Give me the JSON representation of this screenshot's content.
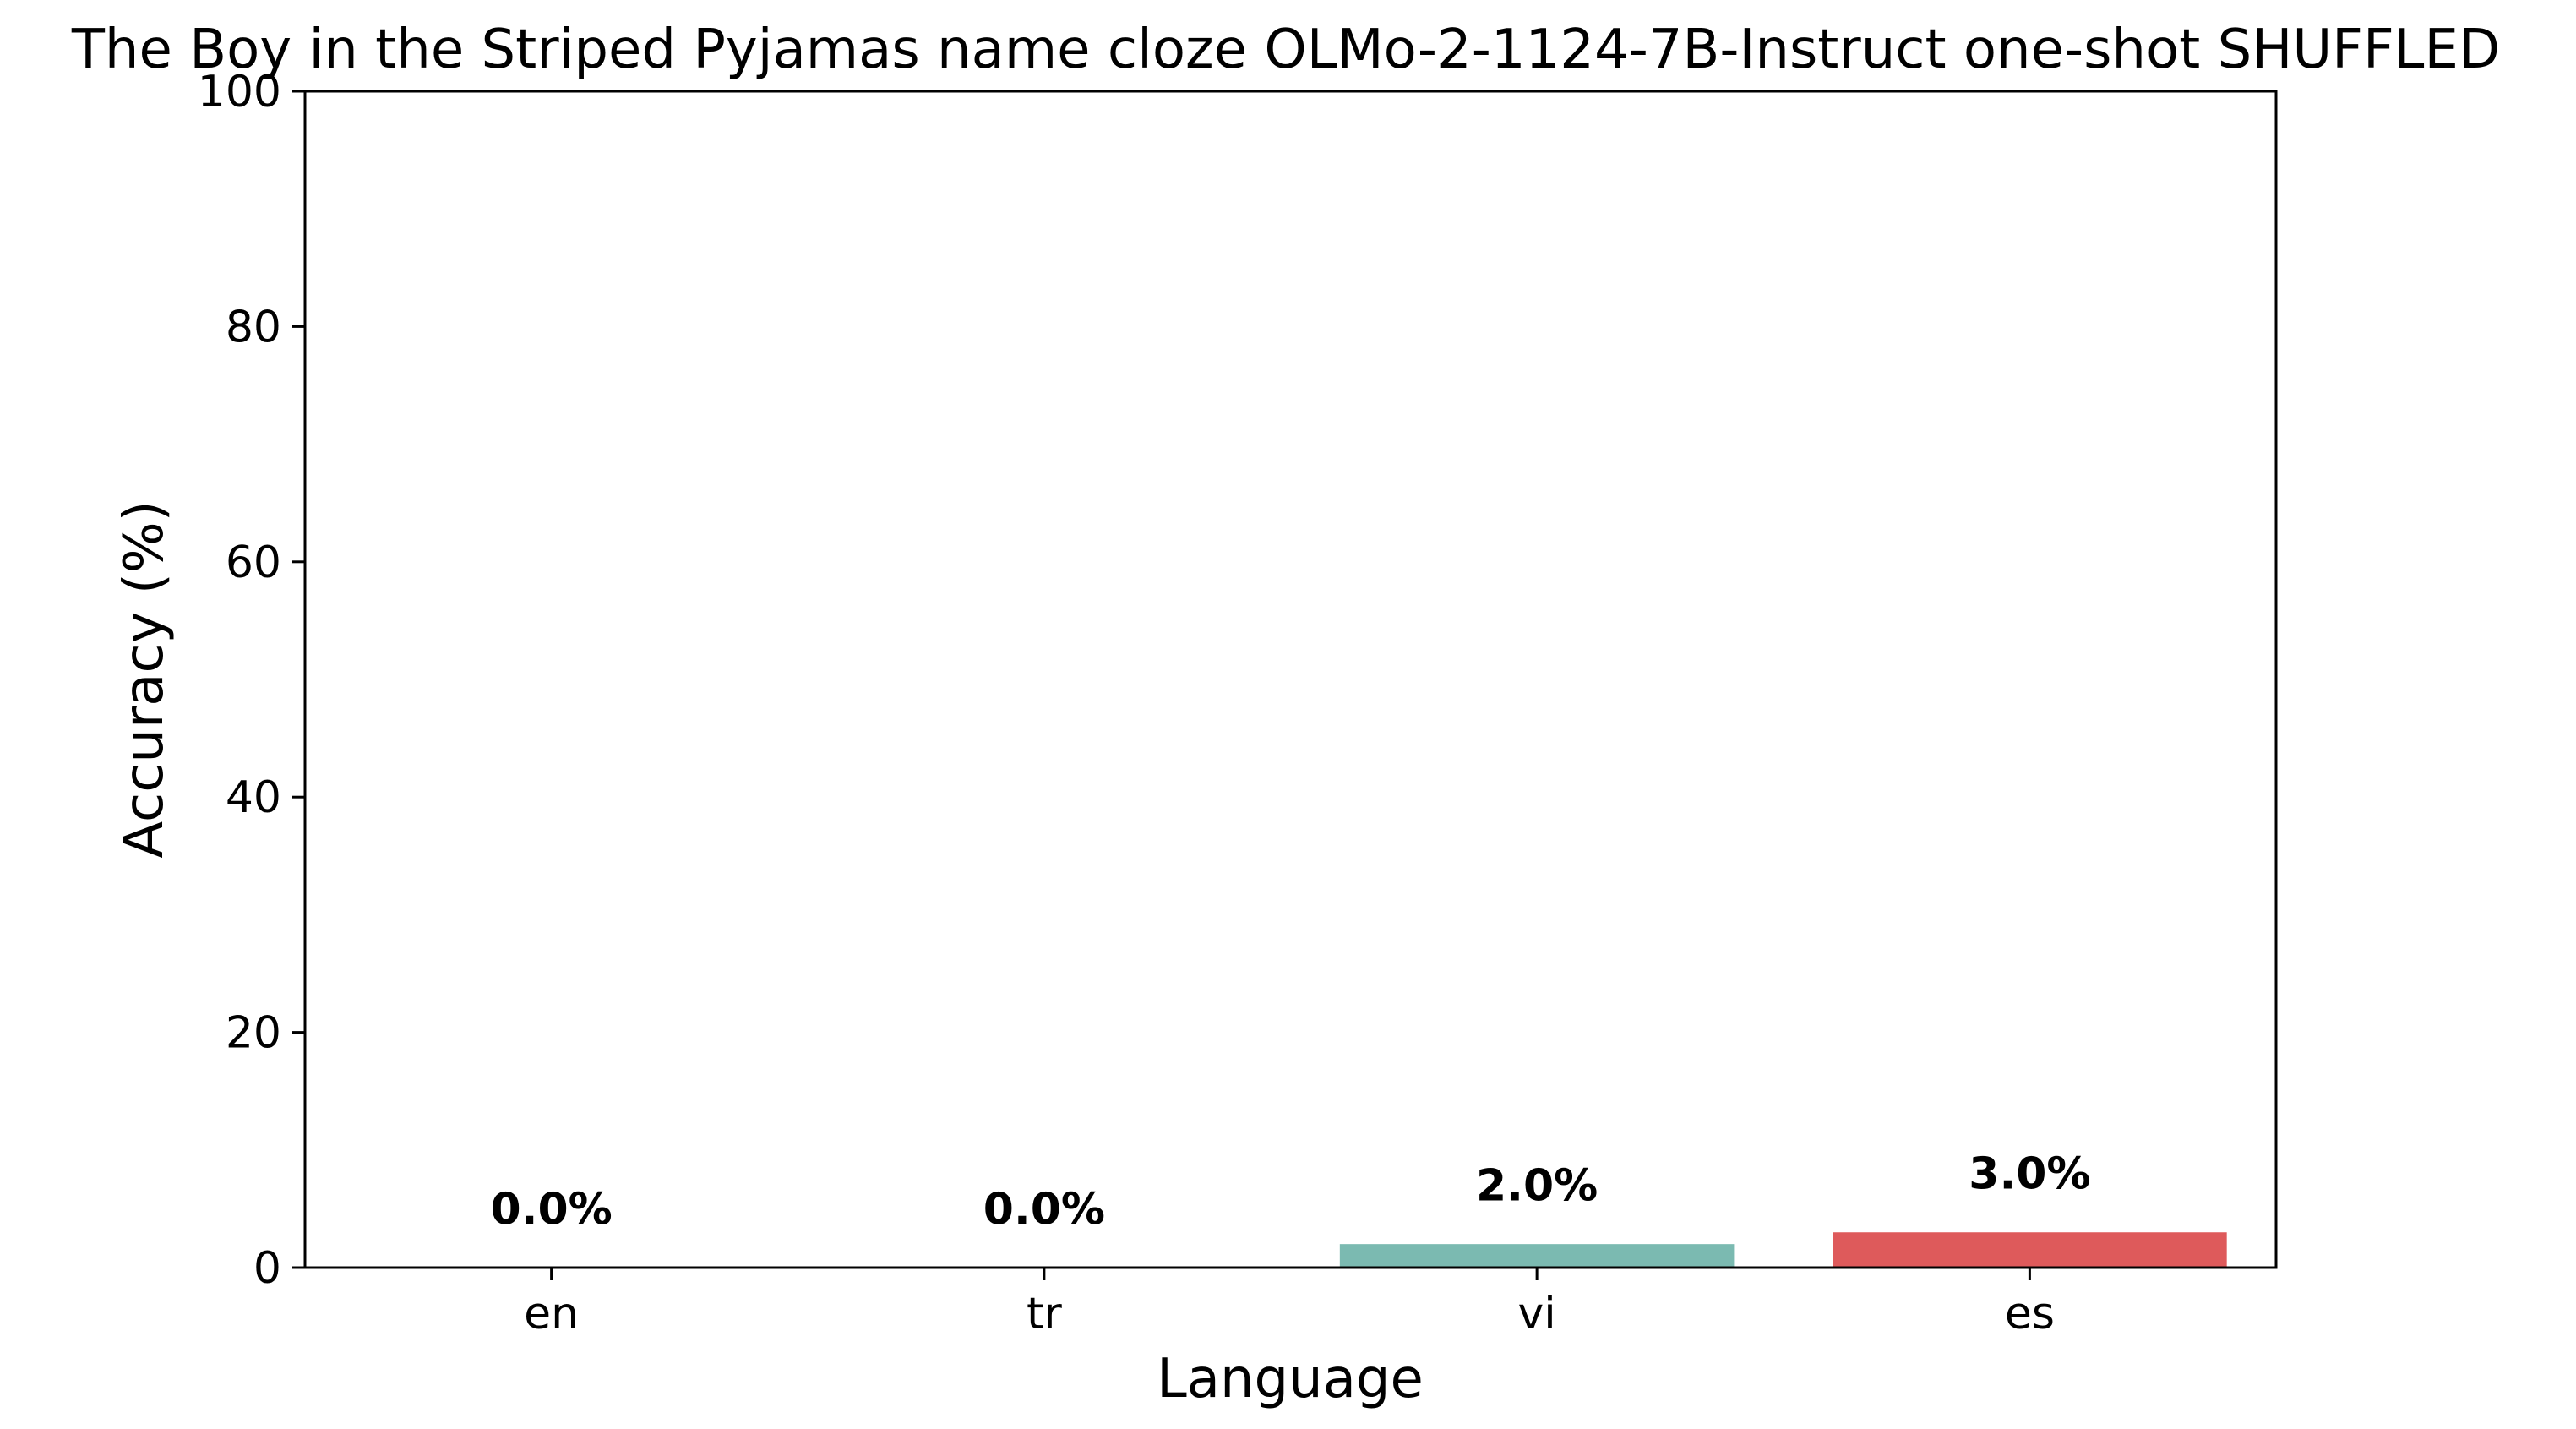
{
  "chart_data": {
    "type": "bar",
    "title": "The Boy in the Striped Pyjamas name cloze OLMo-2-1124-7B-Instruct one-shot SHUFFLED",
    "xlabel": "Language",
    "ylabel": "Accuracy (%)",
    "categories": [
      "en",
      "tr",
      "vi",
      "es"
    ],
    "values": [
      0.0,
      0.0,
      2.0,
      3.0
    ],
    "value_labels": [
      "0.0%",
      "0.0%",
      "2.0%",
      "3.0%"
    ],
    "colors": [
      "#4c72b0",
      "#dd8452",
      "#7bbab1",
      "#de5a5b"
    ],
    "ylim": [
      0,
      100
    ],
    "yticks": [
      0,
      20,
      40,
      60,
      80,
      100
    ],
    "grid": false,
    "legend": "none"
  }
}
